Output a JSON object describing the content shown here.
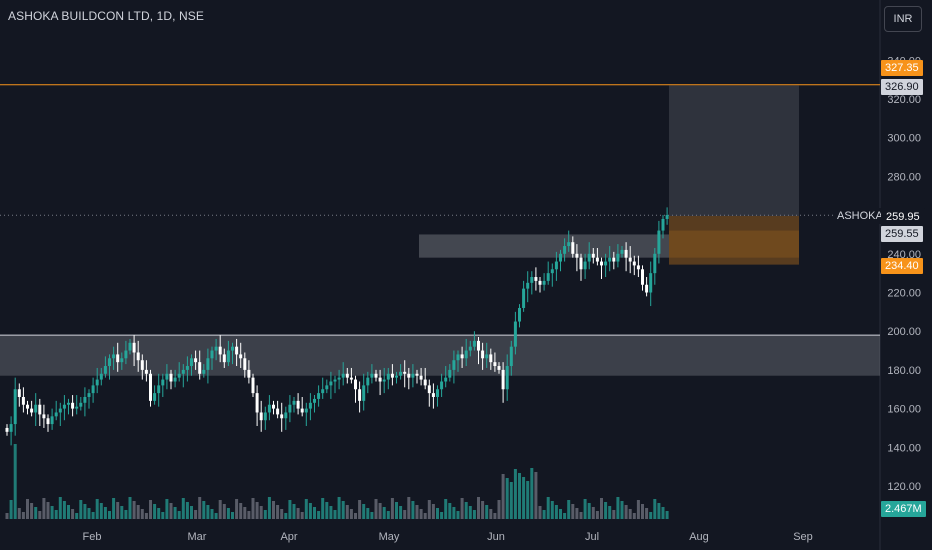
{
  "header": {
    "title": "ASHOKA BUILDCON LTD, 1D, NSE",
    "currency": "INR"
  },
  "price_axis": {
    "ticks": [
      "340.00",
      "320.00",
      "300.00",
      "280.00",
      "260.00",
      "240.00",
      "220.00",
      "200.00",
      "180.00",
      "160.00",
      "140.00",
      "120.00"
    ]
  },
  "time_axis": {
    "ticks": [
      "Feb",
      "Mar",
      "Apr",
      "May",
      "Jun",
      "Jul",
      "Aug",
      "Sep"
    ]
  },
  "labels": {
    "ticker": "ASHOKA",
    "last_price": "259.95",
    "target_top": "327.35",
    "target_inner": "326.90",
    "entry": "259.55",
    "stop": "234.40",
    "volume": "2.467M"
  },
  "colors": {
    "up": "#26a69a",
    "down": "#ffffff",
    "orange": "#f7931a",
    "grey": "#b2b5be"
  },
  "chart_data": {
    "type": "candlestick",
    "title": "ASHOKA BUILDCON LTD, 1D, NSE",
    "ylim": [
      110,
      345
    ],
    "closes": [
      148,
      152,
      170,
      166,
      162,
      160,
      158,
      162,
      157,
      155,
      152,
      156,
      158,
      160,
      162,
      163,
      160,
      161,
      163,
      166,
      168,
      172,
      175,
      178,
      182,
      186,
      188,
      184,
      186,
      190,
      194,
      189,
      185,
      180,
      178,
      164,
      168,
      172,
      175,
      178,
      174,
      176,
      178,
      180,
      182,
      186,
      184,
      178,
      180,
      186,
      190,
      192,
      188,
      184,
      190,
      192,
      188,
      186,
      180,
      176,
      168,
      158,
      154,
      158,
      162,
      160,
      157,
      155,
      158,
      162,
      164,
      160,
      158,
      160,
      163,
      165,
      168,
      170,
      172,
      174,
      175,
      176,
      178,
      176,
      175,
      170,
      164,
      172,
      176,
      178,
      176,
      174,
      175,
      178,
      176,
      177,
      179,
      178,
      176,
      178,
      177,
      175,
      172,
      168,
      166,
      170,
      174,
      176,
      180,
      185,
      188,
      186,
      190,
      192,
      195,
      190,
      186,
      188,
      184,
      182,
      180,
      170,
      182,
      192,
      205,
      212,
      222,
      225,
      228,
      226,
      224,
      226,
      230,
      232,
      236,
      240,
      244,
      246,
      240,
      238,
      232,
      236,
      240,
      238,
      236,
      234,
      236,
      238,
      236,
      240,
      242,
      238,
      236,
      234,
      232,
      224,
      220,
      230,
      240,
      252,
      258,
      260
    ],
    "volume_label": "2.467M"
  }
}
